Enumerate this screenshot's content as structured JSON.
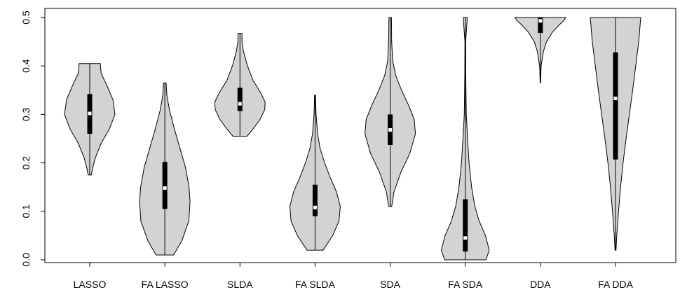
{
  "chart_data": {
    "type": "violin",
    "title": "",
    "xlabel": "",
    "ylabel": "",
    "ylim": [
      0,
      0.5
    ],
    "yticks": [
      "0.0",
      "0.1",
      "0.2",
      "0.3",
      "0.4",
      "0.5"
    ],
    "categories": [
      "LASSO",
      "FA LASSO",
      "SLDA",
      "FA SLDA",
      "SDA",
      "FA SDA",
      "DDA",
      "FA DDA"
    ],
    "colors": {
      "violin_fill": "#d3d3d3",
      "box": "#000000",
      "median": "#ffffff"
    },
    "series": [
      {
        "category": "LASSO",
        "min": 0.175,
        "max": 0.405,
        "q1": 0.26,
        "median": 0.302,
        "q3": 0.342,
        "density": [
          [
            0.175,
            0.06
          ],
          [
            0.19,
            0.12
          ],
          [
            0.21,
            0.22
          ],
          [
            0.24,
            0.45
          ],
          [
            0.27,
            0.78
          ],
          [
            0.3,
            1.0
          ],
          [
            0.33,
            0.92
          ],
          [
            0.36,
            0.68
          ],
          [
            0.385,
            0.45
          ],
          [
            0.405,
            0.42
          ]
        ]
      },
      {
        "category": "FA LASSO",
        "min": 0.01,
        "max": 0.365,
        "q1": 0.105,
        "median": 0.148,
        "q3": 0.202,
        "density": [
          [
            0.01,
            0.35
          ],
          [
            0.04,
            0.68
          ],
          [
            0.08,
            0.95
          ],
          [
            0.12,
            1.0
          ],
          [
            0.15,
            0.96
          ],
          [
            0.19,
            0.82
          ],
          [
            0.23,
            0.6
          ],
          [
            0.27,
            0.38
          ],
          [
            0.31,
            0.18
          ],
          [
            0.34,
            0.08
          ],
          [
            0.365,
            0.05
          ]
        ]
      },
      {
        "category": "SLDA",
        "min": 0.255,
        "max": 0.467,
        "q1": 0.307,
        "median": 0.322,
        "q3": 0.355,
        "density": [
          [
            0.255,
            0.28
          ],
          [
            0.27,
            0.52
          ],
          [
            0.29,
            0.8
          ],
          [
            0.31,
            0.98
          ],
          [
            0.325,
            1.0
          ],
          [
            0.345,
            0.82
          ],
          [
            0.37,
            0.52
          ],
          [
            0.4,
            0.3
          ],
          [
            0.43,
            0.14
          ],
          [
            0.45,
            0.08
          ],
          [
            0.467,
            0.08
          ]
        ]
      },
      {
        "category": "FA SLDA",
        "min": 0.02,
        "max": 0.34,
        "q1": 0.09,
        "median": 0.108,
        "q3": 0.155,
        "density": [
          [
            0.02,
            0.32
          ],
          [
            0.05,
            0.7
          ],
          [
            0.08,
            0.95
          ],
          [
            0.11,
            1.0
          ],
          [
            0.14,
            0.85
          ],
          [
            0.17,
            0.6
          ],
          [
            0.2,
            0.38
          ],
          [
            0.23,
            0.2
          ],
          [
            0.26,
            0.1
          ],
          [
            0.3,
            0.04
          ],
          [
            0.34,
            0.02
          ]
        ]
      },
      {
        "category": "SDA",
        "min": 0.11,
        "max": 0.5,
        "q1": 0.237,
        "median": 0.268,
        "q3": 0.3,
        "density": [
          [
            0.11,
            0.06
          ],
          [
            0.14,
            0.15
          ],
          [
            0.18,
            0.42
          ],
          [
            0.22,
            0.78
          ],
          [
            0.26,
            1.0
          ],
          [
            0.29,
            0.95
          ],
          [
            0.32,
            0.72
          ],
          [
            0.35,
            0.45
          ],
          [
            0.38,
            0.22
          ],
          [
            0.41,
            0.1
          ],
          [
            0.45,
            0.06
          ],
          [
            0.5,
            0.05
          ]
        ]
      },
      {
        "category": "FA SDA",
        "min": 0.0,
        "max": 0.5,
        "q1": 0.017,
        "median": 0.045,
        "q3": 0.125,
        "density": [
          [
            0.0,
            0.82
          ],
          [
            0.02,
            0.95
          ],
          [
            0.05,
            0.8
          ],
          [
            0.08,
            0.55
          ],
          [
            0.11,
            0.38
          ],
          [
            0.15,
            0.25
          ],
          [
            0.2,
            0.15
          ],
          [
            0.26,
            0.08
          ],
          [
            0.3,
            0.04
          ],
          [
            0.38,
            0.02
          ],
          [
            0.45,
            0.015
          ],
          [
            0.5,
            0.08
          ]
        ]
      },
      {
        "category": "DDA",
        "min": 0.365,
        "max": 0.5,
        "q1": 0.468,
        "median": 0.493,
        "q3": 0.5,
        "density": [
          [
            0.365,
            0.01
          ],
          [
            0.4,
            0.03
          ],
          [
            0.43,
            0.12
          ],
          [
            0.45,
            0.24
          ],
          [
            0.47,
            0.48
          ],
          [
            0.485,
            0.75
          ],
          [
            0.495,
            0.95
          ],
          [
            0.5,
            1.0
          ]
        ]
      },
      {
        "category": "FA DDA",
        "min": 0.02,
        "max": 0.5,
        "q1": 0.207,
        "median": 0.333,
        "q3": 0.428,
        "density": [
          [
            0.02,
            0.02
          ],
          [
            0.05,
            0.05
          ],
          [
            0.1,
            0.12
          ],
          [
            0.15,
            0.2
          ],
          [
            0.2,
            0.3
          ],
          [
            0.25,
            0.42
          ],
          [
            0.3,
            0.55
          ],
          [
            0.35,
            0.68
          ],
          [
            0.4,
            0.8
          ],
          [
            0.45,
            0.92
          ],
          [
            0.5,
            1.0
          ]
        ]
      }
    ]
  }
}
